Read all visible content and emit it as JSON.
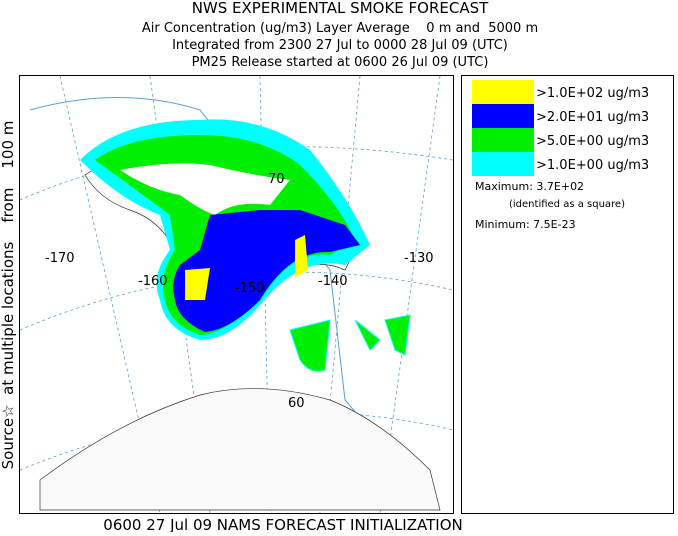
{
  "header": {
    "title": "NWS EXPERIMENTAL SMOKE FORECAST",
    "lines": [
      "Air Concentration (ug/m3) Layer Average    0 m and  5000 m",
      "Integrated from 2300 27 Jul to 0000 28 Jul 09 (UTC)",
      "PM25 Release started at 0600 26 Jul 09 (UTC)"
    ]
  },
  "side_label": "Source☆  at multiple locations    from    100 m",
  "legend": {
    "items": [
      {
        "label": ">1.0E+02 ug/m3",
        "color": "#ffff00"
      },
      {
        "label": ">2.0E+01 ug/m3",
        "color": "#0000ff"
      },
      {
        "label": ">5.0E+00 ug/m3",
        "color": "#00ee00"
      },
      {
        "label": ">1.0E+00 ug/m3",
        "color": "#00ffff"
      }
    ],
    "maximum": "Maximum: 3.7E+02",
    "maximum_note": "(identified as a square)",
    "minimum": "Minimum: 7.5E-23"
  },
  "map": {
    "labels": [
      "-170",
      "-160",
      "-150",
      "-140",
      "-130",
      "60",
      "70"
    ]
  },
  "footer": "0600 27 Jul 09 NAMS FORECAST INITIALIZATION"
}
